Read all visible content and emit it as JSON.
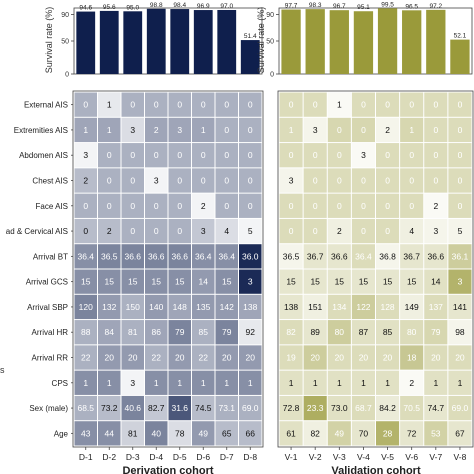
{
  "chart_data": [
    {
      "type": "bar",
      "panel": "derivation-survival",
      "ylabel": "Survival rate (%)",
      "yticks": [
        "0",
        "50",
        "90"
      ],
      "ylim": [
        0,
        100
      ],
      "categories": [
        "D-1",
        "D-2",
        "D-3",
        "D-4",
        "D-5",
        "D-6",
        "D-7",
        "D-8"
      ],
      "values": [
        94.6,
        95.6,
        95.0,
        98.8,
        98.4,
        96.9,
        97.0,
        51.4
      ],
      "labels": [
        "94.6",
        "95.6",
        "95.0",
        "98.8",
        "98.4",
        "96.9",
        "97.0",
        "51.4"
      ],
      "color": "#0f1f4d"
    },
    {
      "type": "bar",
      "panel": "validation-survival",
      "ylabel": "Survival rate (%)",
      "yticks": [
        "0",
        "50",
        "90"
      ],
      "ylim": [
        0,
        100
      ],
      "categories": [
        "V-1",
        "V-2",
        "V-3",
        "V-4",
        "V-5",
        "V-6",
        "V-7",
        "V-8"
      ],
      "values": [
        97.7,
        98.3,
        96.7,
        95.1,
        99.5,
        96.5,
        97.2,
        52.1
      ],
      "labels": [
        "97.7",
        "98.3",
        "96.7",
        "95.1",
        "99.5",
        "96.5",
        "97.2",
        "52.1"
      ],
      "color": "#9a9a3a"
    },
    {
      "type": "heatmap",
      "panel": "derivation-heatmap",
      "xlabel": "Derivation cohort",
      "columns": [
        "D-1",
        "D-2",
        "D-3",
        "D-4",
        "D-5",
        "D-6",
        "D-7",
        "D-8"
      ],
      "rows": [
        "External AIS",
        "Extremities AIS",
        "Abdomen AIS",
        "Chest AIS",
        "Face AIS",
        "ad & Cervical AIS",
        "Arrival BT",
        "Arrival GCS",
        "Arrival SBP",
        "Arrival HR",
        "Arrival RR",
        "CPS",
        "Sex (male)",
        "Age"
      ],
      "values": [
        [
          "0",
          "1",
          "0",
          "0",
          "0",
          "0",
          "0",
          "0"
        ],
        [
          "1",
          "1",
          "3",
          "2",
          "3",
          "1",
          "0",
          "0"
        ],
        [
          "3",
          "0",
          "0",
          "0",
          "0",
          "0",
          "0",
          "0"
        ],
        [
          "2",
          "0",
          "0",
          "3",
          "0",
          "0",
          "0",
          "0"
        ],
        [
          "0",
          "0",
          "0",
          "0",
          "0",
          "2",
          "0",
          "0"
        ],
        [
          "0",
          "2",
          "0",
          "0",
          "0",
          "3",
          "4",
          "5"
        ],
        [
          "36.4",
          "36.5",
          "36.6",
          "36.6",
          "36.6",
          "36.4",
          "36.4",
          "36.0"
        ],
        [
          "15",
          "15",
          "15",
          "15",
          "15",
          "14",
          "15",
          "3"
        ],
        [
          "120",
          "132",
          "150",
          "140",
          "148",
          "135",
          "142",
          "138"
        ],
        [
          "88",
          "84",
          "81",
          "86",
          "79",
          "85",
          "79",
          "92"
        ],
        [
          "22",
          "20",
          "20",
          "22",
          "20",
          "22",
          "20",
          "20"
        ],
        [
          "1",
          "1",
          "3",
          "1",
          "1",
          "1",
          "1",
          "1"
        ],
        [
          "68.5",
          "73.2",
          "40.6",
          "82.7",
          "31.6",
          "74.5",
          "73.1",
          "69.0"
        ],
        [
          "43",
          "44",
          "81",
          "40",
          "78",
          "49",
          "65",
          "66"
        ]
      ],
      "intensity": [
        [
          0.35,
          0.1,
          0.35,
          0.35,
          0.35,
          0.35,
          0.35,
          0.35
        ],
        [
          0.4,
          0.4,
          0.15,
          0.4,
          0.4,
          0.4,
          0.35,
          0.35
        ],
        [
          0.05,
          0.35,
          0.35,
          0.35,
          0.35,
          0.35,
          0.35,
          0.35
        ],
        [
          0.3,
          0.35,
          0.35,
          0.05,
          0.35,
          0.35,
          0.35,
          0.35
        ],
        [
          0.35,
          0.35,
          0.35,
          0.35,
          0.35,
          0.05,
          0.35,
          0.35
        ],
        [
          0.3,
          0.3,
          0.35,
          0.35,
          0.35,
          0.25,
          0.15,
          0.05
        ],
        [
          0.5,
          0.55,
          0.55,
          0.55,
          0.55,
          0.5,
          0.5,
          0.95
        ],
        [
          0.5,
          0.5,
          0.5,
          0.5,
          0.5,
          0.45,
          0.5,
          0.95
        ],
        [
          0.55,
          0.45,
          0.35,
          0.45,
          0.4,
          0.45,
          0.45,
          0.4
        ],
        [
          0.35,
          0.4,
          0.35,
          0.4,
          0.55,
          0.35,
          0.55,
          0.1
        ],
        [
          0.35,
          0.45,
          0.45,
          0.35,
          0.45,
          0.35,
          0.45,
          0.45
        ],
        [
          0.5,
          0.5,
          0.05,
          0.5,
          0.5,
          0.5,
          0.5,
          0.5
        ],
        [
          0.35,
          0.3,
          0.55,
          0.25,
          0.75,
          0.3,
          0.35,
          0.35
        ],
        [
          0.5,
          0.5,
          0.2,
          0.55,
          0.15,
          0.45,
          0.3,
          0.3
        ]
      ],
      "color": "#0f1f4d"
    },
    {
      "type": "heatmap",
      "panel": "validation-heatmap",
      "xlabel": "Validation cohort",
      "columns": [
        "V-1",
        "V-2",
        "V-3",
        "V-4",
        "V-5",
        "V-6",
        "V-7",
        "V-8"
      ],
      "values": [
        [
          "0",
          "0",
          "1",
          "0",
          "0",
          "0",
          "0",
          "0"
        ],
        [
          "1",
          "3",
          "0",
          "0",
          "2",
          "1",
          "0",
          "0"
        ],
        [
          "0",
          "0",
          "0",
          "3",
          "0",
          "0",
          "0",
          "0"
        ],
        [
          "3",
          "0",
          "0",
          "0",
          "0",
          "0",
          "0",
          "0"
        ],
        [
          "0",
          "0",
          "0",
          "0",
          "0",
          "0",
          "2",
          "0"
        ],
        [
          "0",
          "0",
          "2",
          "0",
          "0",
          "4",
          "3",
          "5"
        ],
        [
          "36.5",
          "36.7",
          "36.6",
          "36.4",
          "36.8",
          "36.7",
          "36.6",
          "36.1"
        ],
        [
          "15",
          "15",
          "15",
          "15",
          "15",
          "15",
          "14",
          "3"
        ],
        [
          "138",
          "151",
          "134",
          "122",
          "128",
          "149",
          "137",
          "141"
        ],
        [
          "82",
          "89",
          "80",
          "87",
          "85",
          "80",
          "79",
          "98"
        ],
        [
          "19",
          "20",
          "20",
          "20",
          "20",
          "18",
          "20",
          "20"
        ],
        [
          "1",
          "1",
          "1",
          "1",
          "1",
          "2",
          "1",
          "1"
        ],
        [
          "72.8",
          "23.3",
          "73.0",
          "68.7",
          "84.2",
          "70.5",
          "74.7",
          "69.0"
        ],
        [
          "61",
          "82",
          "49",
          "70",
          "28",
          "72",
          "53",
          "67"
        ]
      ],
      "intensity": [
        [
          0.35,
          0.35,
          0.05,
          0.35,
          0.35,
          0.35,
          0.35,
          0.35
        ],
        [
          0.35,
          0.1,
          0.4,
          0.4,
          0.1,
          0.4,
          0.35,
          0.35
        ],
        [
          0.35,
          0.35,
          0.35,
          0.05,
          0.35,
          0.35,
          0.35,
          0.35
        ],
        [
          0.1,
          0.35,
          0.35,
          0.35,
          0.35,
          0.35,
          0.35,
          0.35
        ],
        [
          0.35,
          0.35,
          0.35,
          0.35,
          0.35,
          0.35,
          0.05,
          0.35
        ],
        [
          0.35,
          0.35,
          0.15,
          0.35,
          0.35,
          0.15,
          0.1,
          0.1
        ],
        [
          0.1,
          0.25,
          0.25,
          0.35,
          0.1,
          0.25,
          0.25,
          0.5
        ],
        [
          0.25,
          0.25,
          0.25,
          0.25,
          0.25,
          0.25,
          0.3,
          0.75
        ],
        [
          0.25,
          0.15,
          0.35,
          0.5,
          0.35,
          0.15,
          0.35,
          0.25
        ],
        [
          0.35,
          0.25,
          0.5,
          0.3,
          0.3,
          0.35,
          0.4,
          0.1
        ],
        [
          0.35,
          0.5,
          0.35,
          0.35,
          0.35,
          0.55,
          0.35,
          0.35
        ],
        [
          0.3,
          0.3,
          0.3,
          0.3,
          0.3,
          0.05,
          0.3,
          0.3
        ],
        [
          0.3,
          0.8,
          0.3,
          0.35,
          0.2,
          0.35,
          0.25,
          0.35
        ],
        [
          0.3,
          0.15,
          0.45,
          0.25,
          0.75,
          0.25,
          0.45,
          0.25
        ]
      ],
      "color": "#9a9a3a"
    }
  ],
  "left_margin_label": "s"
}
